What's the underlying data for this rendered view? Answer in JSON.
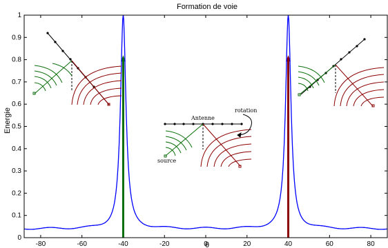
{
  "chart_data": {
    "type": "line",
    "title": "Formation de voie",
    "xlabel": "θ",
    "ylabel": "Energie",
    "xlim": [
      -88,
      88
    ],
    "ylim": [
      0,
      1
    ],
    "xticks": [
      -80,
      -60,
      -40,
      -20,
      0,
      20,
      40,
      60,
      80
    ],
    "yticks": [
      0,
      0.1,
      0.2,
      0.3,
      0.4,
      0.5,
      0.6,
      0.7,
      0.8,
      0.9,
      1
    ],
    "grid": false,
    "series": [
      {
        "style": "line",
        "color": "#0000ff",
        "peaks": [
          {
            "x": -40,
            "y": 1.0
          },
          {
            "x": 40,
            "y": 1.0
          }
        ],
        "baseline": 0.04,
        "points": [
          {
            "x": -88,
            "y": 0.04
          },
          {
            "x": -70,
            "y": 0.04
          },
          {
            "x": -60,
            "y": 0.05
          },
          {
            "x": -50,
            "y": 0.09
          },
          {
            "x": -45,
            "y": 0.2
          },
          {
            "x": -43,
            "y": 0.4
          },
          {
            "x": -41,
            "y": 0.85
          },
          {
            "x": -40,
            "y": 1.0
          },
          {
            "x": -39,
            "y": 0.85
          },
          {
            "x": -37,
            "y": 0.4
          },
          {
            "x": -35,
            "y": 0.2
          },
          {
            "x": -30,
            "y": 0.08
          },
          {
            "x": -20,
            "y": 0.04
          },
          {
            "x": 0,
            "y": 0.04
          },
          {
            "x": 20,
            "y": 0.04
          },
          {
            "x": 30,
            "y": 0.08
          },
          {
            "x": 35,
            "y": 0.2
          },
          {
            "x": 37,
            "y": 0.4
          },
          {
            "x": 39,
            "y": 0.85
          },
          {
            "x": 40,
            "y": 1.0
          },
          {
            "x": 41,
            "y": 0.85
          },
          {
            "x": 43,
            "y": 0.4
          },
          {
            "x": 45,
            "y": 0.2
          },
          {
            "x": 50,
            "y": 0.09
          },
          {
            "x": 60,
            "y": 0.05
          },
          {
            "x": 70,
            "y": 0.04
          },
          {
            "x": 88,
            "y": 0.04
          }
        ]
      },
      {
        "style": "arrow",
        "color": "#0b6e0b",
        "x": -40,
        "y": 0.82
      },
      {
        "style": "arrow",
        "color": "#8b0000",
        "x": 40,
        "y": 0.82
      }
    ],
    "annotations": [
      "Antenne",
      "rotation",
      "source"
    ]
  }
}
